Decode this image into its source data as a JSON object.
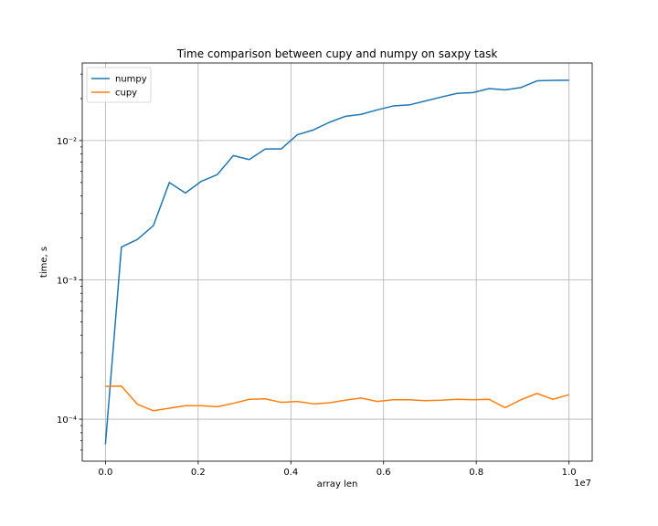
{
  "chart_data": {
    "type": "line",
    "title": "Time comparison between cupy and numpy on saxpy task",
    "xlabel": "array len",
    "ylabel": "time, s",
    "x_offset_text": "1e7",
    "xscale": "linear",
    "yscale": "log",
    "xlim": [
      -0.05,
      1.05
    ],
    "ylim": [
      5e-05,
      0.036
    ],
    "grid": true,
    "legend_position": "top-left",
    "x_ticks": [
      0.0,
      0.2,
      0.4,
      0.6,
      0.8,
      1.0
    ],
    "x_tick_labels": [
      "0.0",
      "0.2",
      "0.4",
      "0.6",
      "0.8",
      "1.0"
    ],
    "y_ticks": [
      0.0001,
      0.001,
      0.01
    ],
    "y_tick_labels": [
      "10⁻⁴",
      "10⁻³",
      "10⁻²"
    ],
    "x": [
      0.0,
      0.0345,
      0.069,
      0.1034,
      0.1379,
      0.1724,
      0.2069,
      0.2414,
      0.2759,
      0.3103,
      0.3448,
      0.3793,
      0.4138,
      0.4483,
      0.4828,
      0.5172,
      0.5517,
      0.5862,
      0.6207,
      0.6552,
      0.6897,
      0.7241,
      0.7586,
      0.7931,
      0.8276,
      0.8621,
      0.8966,
      0.931,
      0.9655,
      1.0
    ],
    "series": [
      {
        "name": "numpy",
        "color": "#1f77b4",
        "values": [
          6.6e-05,
          0.00172,
          0.00195,
          0.00245,
          0.005,
          0.0042,
          0.0051,
          0.0057,
          0.0078,
          0.0073,
          0.0087,
          0.0087,
          0.011,
          0.0119,
          0.0135,
          0.0149,
          0.0154,
          0.0166,
          0.0177,
          0.018,
          0.0192,
          0.0205,
          0.0218,
          0.0221,
          0.0236,
          0.0231,
          0.024,
          0.0268,
          0.027,
          0.0271
        ]
      },
      {
        "name": "cupy",
        "color": "#ff7f0e",
        "values": [
          0.000172,
          0.000173,
          0.000128,
          0.000115,
          0.00012,
          0.000125,
          0.000125,
          0.000123,
          0.00013,
          0.000139,
          0.00014,
          0.000132,
          0.000134,
          0.000129,
          0.000131,
          0.000137,
          0.000142,
          0.000134,
          0.000138,
          0.000138,
          0.000136,
          0.000137,
          0.000139,
          0.000138,
          0.000139,
          0.000121,
          0.000138,
          0.000153,
          0.000139,
          0.00015
        ]
      }
    ]
  }
}
